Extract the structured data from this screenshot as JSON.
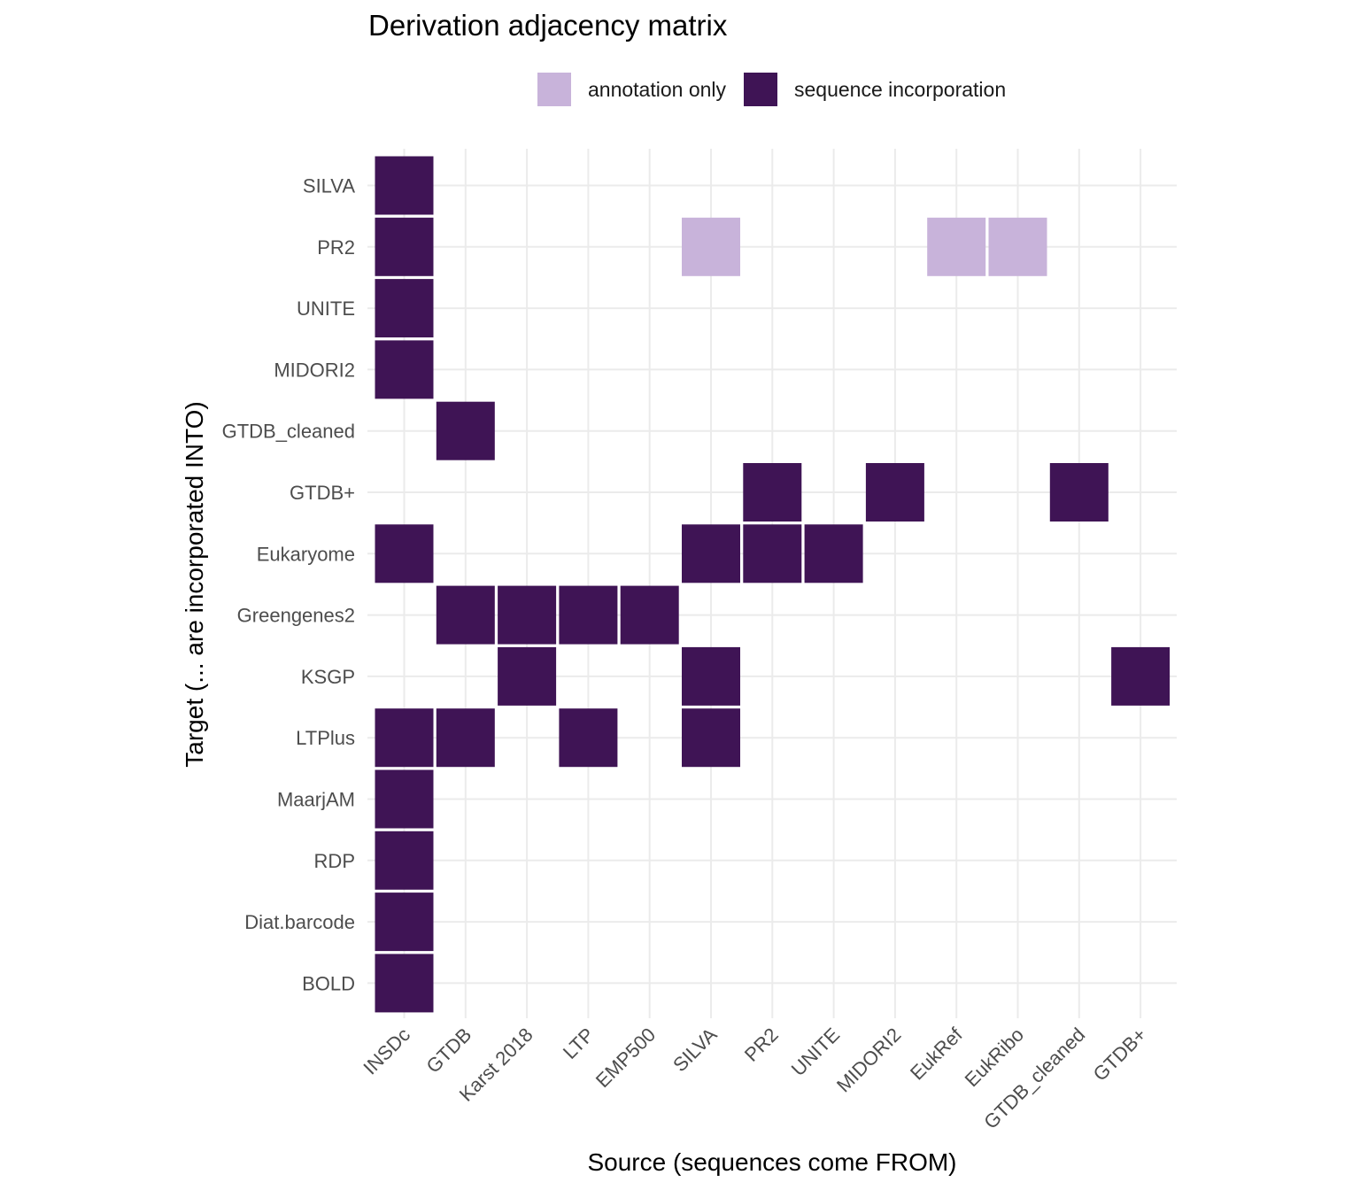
{
  "chart_data": {
    "type": "heatmap",
    "title": "Derivation adjacency matrix",
    "xlabel": "Source (sequences come FROM)",
    "ylabel": "Target (... are incorporated INTO)",
    "x_categories": [
      "INSDc",
      "GTDB",
      "Karst 2018",
      "LTP",
      "EMP500",
      "SILVA",
      "PR2",
      "UNITE",
      "MIDORI2",
      "EukRef",
      "EukRibo",
      "GTDB_cleaned",
      "GTDB+"
    ],
    "y_categories": [
      "SILVA",
      "PR2",
      "UNITE",
      "MIDORI2",
      "GTDB_cleaned",
      "GTDB+",
      "Eukaryome",
      "Greengenes2",
      "KSGP",
      "LTPlus",
      "MaarjAM",
      "RDP",
      "Diat.barcode",
      "BOLD"
    ],
    "legend": {
      "position": "top",
      "entries": [
        {
          "label": "annotation only",
          "color": "#c8b3da"
        },
        {
          "label": "sequence incorporation",
          "color": "#3f1455"
        }
      ]
    },
    "grid": true,
    "cells": [
      {
        "source": "INSDc",
        "target": "SILVA",
        "type": "sequence incorporation"
      },
      {
        "source": "INSDc",
        "target": "PR2",
        "type": "sequence incorporation"
      },
      {
        "source": "SILVA",
        "target": "PR2",
        "type": "annotation only"
      },
      {
        "source": "EukRef",
        "target": "PR2",
        "type": "annotation only"
      },
      {
        "source": "EukRibo",
        "target": "PR2",
        "type": "annotation only"
      },
      {
        "source": "INSDc",
        "target": "UNITE",
        "type": "sequence incorporation"
      },
      {
        "source": "INSDc",
        "target": "MIDORI2",
        "type": "sequence incorporation"
      },
      {
        "source": "GTDB",
        "target": "GTDB_cleaned",
        "type": "sequence incorporation"
      },
      {
        "source": "PR2",
        "target": "GTDB+",
        "type": "sequence incorporation"
      },
      {
        "source": "MIDORI2",
        "target": "GTDB+",
        "type": "sequence incorporation"
      },
      {
        "source": "GTDB_cleaned",
        "target": "GTDB+",
        "type": "sequence incorporation"
      },
      {
        "source": "INSDc",
        "target": "Eukaryome",
        "type": "sequence incorporation"
      },
      {
        "source": "SILVA",
        "target": "Eukaryome",
        "type": "sequence incorporation"
      },
      {
        "source": "PR2",
        "target": "Eukaryome",
        "type": "sequence incorporation"
      },
      {
        "source": "UNITE",
        "target": "Eukaryome",
        "type": "sequence incorporation"
      },
      {
        "source": "GTDB",
        "target": "Greengenes2",
        "type": "sequence incorporation"
      },
      {
        "source": "Karst 2018",
        "target": "Greengenes2",
        "type": "sequence incorporation"
      },
      {
        "source": "LTP",
        "target": "Greengenes2",
        "type": "sequence incorporation"
      },
      {
        "source": "EMP500",
        "target": "Greengenes2",
        "type": "sequence incorporation"
      },
      {
        "source": "Karst 2018",
        "target": "KSGP",
        "type": "sequence incorporation"
      },
      {
        "source": "SILVA",
        "target": "KSGP",
        "type": "sequence incorporation"
      },
      {
        "source": "GTDB+",
        "target": "KSGP",
        "type": "sequence incorporation"
      },
      {
        "source": "INSDc",
        "target": "LTPlus",
        "type": "sequence incorporation"
      },
      {
        "source": "GTDB",
        "target": "LTPlus",
        "type": "sequence incorporation"
      },
      {
        "source": "LTP",
        "target": "LTPlus",
        "type": "sequence incorporation"
      },
      {
        "source": "SILVA",
        "target": "LTPlus",
        "type": "sequence incorporation"
      },
      {
        "source": "INSDc",
        "target": "MaarjAM",
        "type": "sequence incorporation"
      },
      {
        "source": "INSDc",
        "target": "RDP",
        "type": "sequence incorporation"
      },
      {
        "source": "INSDc",
        "target": "Diat.barcode",
        "type": "sequence incorporation"
      },
      {
        "source": "INSDc",
        "target": "BOLD",
        "type": "sequence incorporation"
      }
    ]
  }
}
